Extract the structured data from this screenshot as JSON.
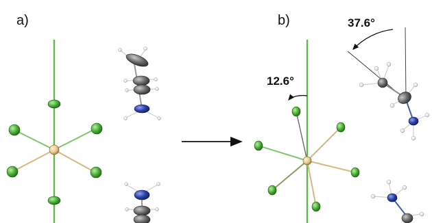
{
  "panels": {
    "a": {
      "label": "a)"
    },
    "b": {
      "label": "b)"
    }
  },
  "angles": {
    "tilt": "12.6°",
    "rotation": "37.6°"
  },
  "colors": {
    "axis": "#5fba47",
    "bond": "#d9b880",
    "halide": "#4caf38",
    "center_atom": "#e8c98a",
    "carbon": "#6e6e6e",
    "nitrogen": "#2b43a8",
    "hydrogen": "#e6e6e6",
    "arrow": "#111111"
  },
  "icons": {
    "transition": "right-arrow-icon"
  }
}
